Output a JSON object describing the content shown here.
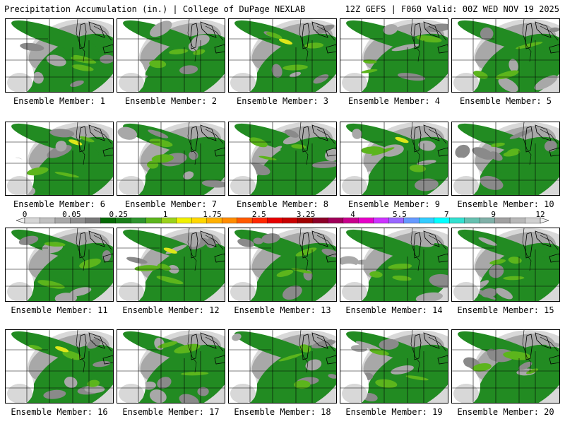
{
  "header": {
    "title": "Precipitation Accumulation (in.) | College of DuPage NEXLAB",
    "run_info": "12Z GEFS | F060 Valid: 00Z WED NOV 19 2025"
  },
  "panels": [
    {
      "label": "Ensemble Member: 1"
    },
    {
      "label": "Ensemble Member: 2"
    },
    {
      "label": "Ensemble Member: 3"
    },
    {
      "label": "Ensemble Member: 4"
    },
    {
      "label": "Ensemble Member: 5"
    },
    {
      "label": "Ensemble Member: 6"
    },
    {
      "label": "Ensemble Member: 7"
    },
    {
      "label": "Ensemble Member: 8"
    },
    {
      "label": "Ensemble Member: 9"
    },
    {
      "label": "Ensemble Member: 10"
    },
    {
      "label": "Ensemble Member: 11"
    },
    {
      "label": "Ensemble Member: 12"
    },
    {
      "label": "Ensemble Member: 13"
    },
    {
      "label": "Ensemble Member: 14"
    },
    {
      "label": "Ensemble Member: 15"
    },
    {
      "label": "Ensemble Member: 16"
    },
    {
      "label": "Ensemble Member: 17"
    },
    {
      "label": "Ensemble Member: 18"
    },
    {
      "label": "Ensemble Member: 19"
    },
    {
      "label": "Ensemble Member: 20"
    }
  ],
  "legend": {
    "labels": [
      "0",
      "0.05",
      "0.25",
      "1",
      "1.75",
      "2.5",
      "3.25",
      "4",
      "5.5",
      "7",
      "9",
      "12"
    ],
    "colors": [
      "#d6d6d6",
      "#c0c0c0",
      "#a8a8a8",
      "#909090",
      "#787878",
      "#056905",
      "#1a7f1a",
      "#2e942e",
      "#5cb51c",
      "#9bd21a",
      "#f0f000",
      "#ffd700",
      "#ffb000",
      "#ff8c00",
      "#ff5a00",
      "#ff2800",
      "#e60000",
      "#c80000",
      "#a00000",
      "#8c0028",
      "#a0005a",
      "#c8008c",
      "#e600c8",
      "#cc33ff",
      "#9966ff",
      "#6699ff",
      "#33ccff",
      "#00ffff",
      "#33e0d0",
      "#66c0b0",
      "#80b0a8",
      "#a0a0a0",
      "#b8b8b8",
      "#d0d0d0"
    ],
    "field_colors": {
      "white": "#ffffff",
      "lightgray": "#d8d8d8",
      "gray": "#a8a8a8",
      "darkgray": "#8a8a8a",
      "green": "#228b22",
      "lightgreen": "#5cb51c",
      "yellow": "#dde61a"
    }
  }
}
